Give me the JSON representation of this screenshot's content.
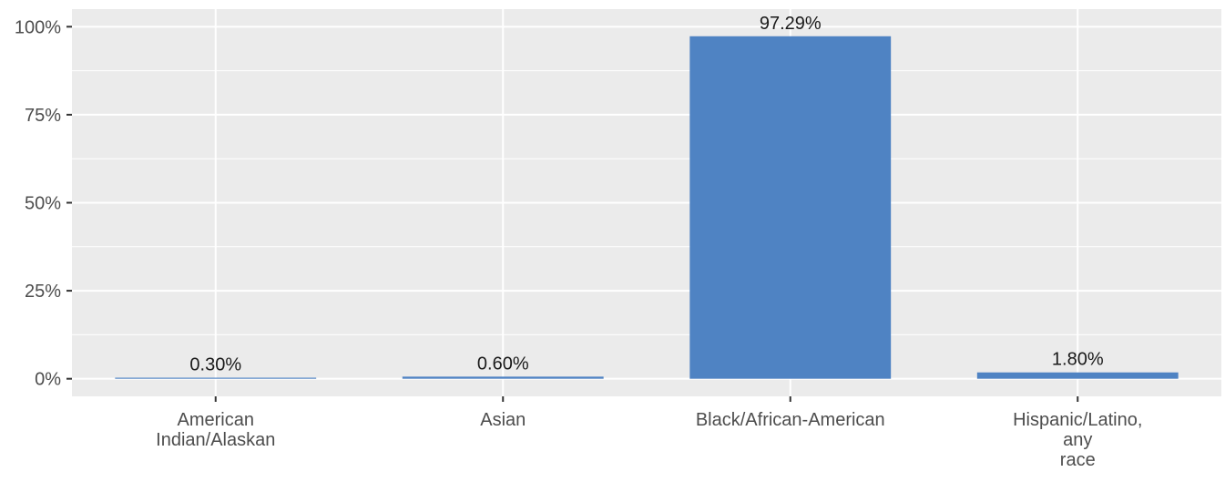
{
  "chart_data": {
    "type": "bar",
    "categories": [
      [
        "American",
        "Indian/Alaskan"
      ],
      [
        "Asian"
      ],
      [
        "Black/African-American"
      ],
      [
        "Hispanic/Latino,",
        "any",
        "race"
      ]
    ],
    "values": [
      0.3,
      0.6,
      97.29,
      1.8
    ],
    "data_labels": [
      "0.30%",
      "0.60%",
      "97.29%",
      "1.80%"
    ],
    "y_ticks": [
      0,
      25,
      50,
      75,
      100
    ],
    "y_tick_labels": [
      "0%",
      "25%",
      "50%",
      "75%",
      "100%"
    ],
    "ylim": [
      -5,
      105
    ],
    "grid": true,
    "bar_color": "#4f83c3",
    "panel_color": "#ebebeb",
    "title": "",
    "xlabel": "",
    "ylabel": ""
  }
}
